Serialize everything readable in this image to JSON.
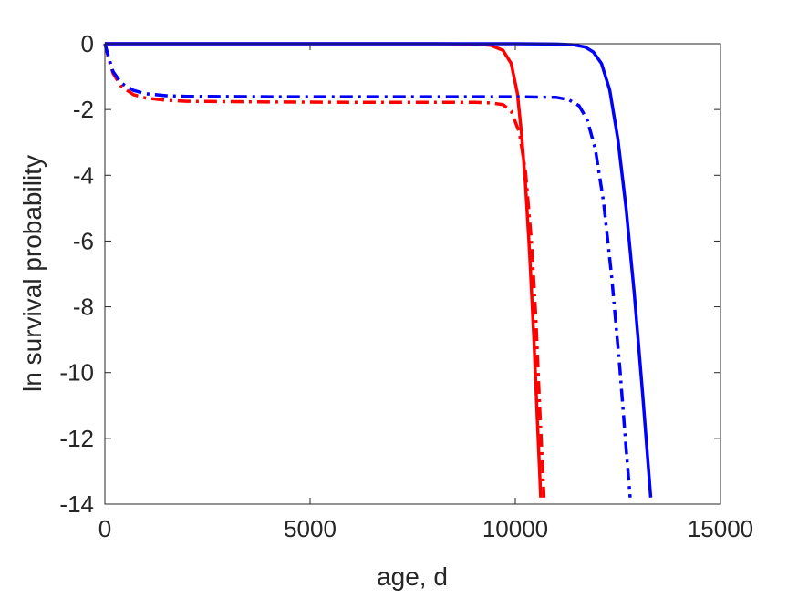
{
  "chart_data": {
    "type": "line",
    "title": "",
    "xlabel": "age, d",
    "ylabel": "ln survival probability",
    "xlim": [
      0,
      15000
    ],
    "ylim": [
      -14,
      0
    ],
    "xticks": [
      0,
      5000,
      10000,
      15000
    ],
    "yticks": [
      0,
      -2,
      -4,
      -6,
      -8,
      -10,
      -12,
      -14
    ],
    "grid": false,
    "legend": "none",
    "series": [
      {
        "color": "#ff0000",
        "style": "solid",
        "x": [
          0,
          2000,
          4000,
          6000,
          8000,
          9000,
          9400,
          9700,
          9900,
          10050,
          10150,
          10250,
          10350,
          10450,
          10550,
          10620
        ],
        "y": [
          0,
          0,
          0,
          0,
          0,
          -0.01,
          -0.05,
          -0.2,
          -0.6,
          -1.5,
          -2.7,
          -4.3,
          -6.4,
          -8.9,
          -11.8,
          -13.8
        ]
      },
      {
        "color": "#ff0000",
        "style": "dashdot",
        "x": [
          0,
          100,
          200,
          400,
          700,
          1000,
          1500,
          2000,
          4000,
          6000,
          8000,
          9000,
          9400,
          9700,
          9900,
          10100,
          10250,
          10400,
          10500,
          10600,
          10700
        ],
        "y": [
          0,
          -0.5,
          -0.9,
          -1.3,
          -1.55,
          -1.65,
          -1.72,
          -1.75,
          -1.77,
          -1.78,
          -1.78,
          -1.78,
          -1.8,
          -1.85,
          -2.05,
          -2.7,
          -3.9,
          -6.1,
          -8.3,
          -11.2,
          -13.8
        ]
      },
      {
        "color": "#0000ff",
        "style": "solid",
        "x": [
          0,
          4000,
          8000,
          10000,
          11000,
          11400,
          11700,
          11900,
          12100,
          12300,
          12500,
          12700,
          12900,
          13100,
          13300
        ],
        "y": [
          0,
          0,
          0,
          0,
          -0.01,
          -0.03,
          -0.1,
          -0.25,
          -0.6,
          -1.4,
          -2.9,
          -5.0,
          -7.6,
          -10.6,
          -13.8
        ]
      },
      {
        "color": "#0000ff",
        "style": "dashdot",
        "x": [
          0,
          100,
          200,
          400,
          700,
          1000,
          1500,
          2000,
          4000,
          8000,
          10000,
          11000,
          11300,
          11550,
          11750,
          11950,
          12150,
          12350,
          12550,
          12700,
          12800
        ],
        "y": [
          0,
          -0.45,
          -0.85,
          -1.2,
          -1.42,
          -1.52,
          -1.58,
          -1.6,
          -1.61,
          -1.61,
          -1.61,
          -1.63,
          -1.7,
          -1.88,
          -2.3,
          -3.2,
          -4.8,
          -7.1,
          -9.9,
          -12.3,
          -13.8
        ]
      }
    ]
  }
}
